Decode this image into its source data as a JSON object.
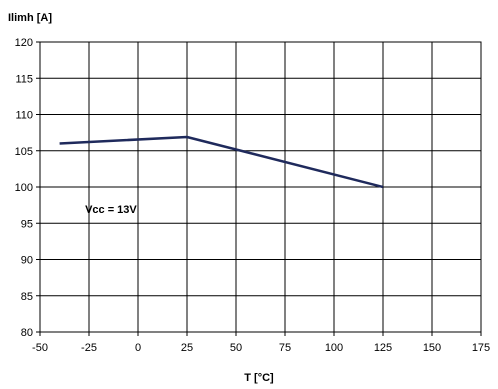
{
  "chart_data": {
    "type": "line",
    "xlabel": "T [°C]",
    "ylabel": "Ilimh [A]",
    "xlim": [
      -50,
      175
    ],
    "ylim": [
      80,
      120
    ],
    "xticks": [
      -50,
      -25,
      0,
      25,
      50,
      75,
      100,
      125,
      150,
      175
    ],
    "yticks": [
      80,
      85,
      90,
      95,
      100,
      105,
      110,
      115,
      120
    ],
    "grid": true,
    "series": [
      {
        "x": [
          -40,
          25,
          125
        ],
        "y": [
          106,
          106.9,
          100
        ],
        "color": "#1f2a5c"
      }
    ],
    "annotations": [
      {
        "text": "Vcc = 13V",
        "x": -27,
        "y": 97
      }
    ]
  }
}
